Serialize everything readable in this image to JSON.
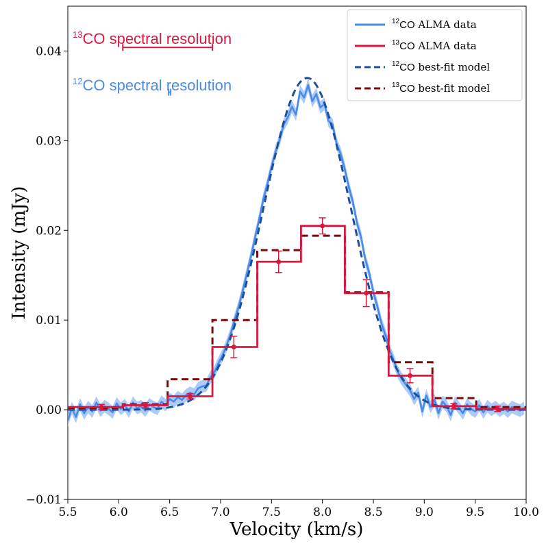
{
  "chart_data": {
    "type": "line",
    "xlabel": "Velocity (km/s)",
    "ylabel": "Intensity (mJy)",
    "xlim": [
      5.5,
      10.0
    ],
    "ylim": [
      -0.01,
      0.045
    ],
    "xticks": [
      "5.5",
      "6.0",
      "6.5",
      "7.0",
      "7.5",
      "8.0",
      "8.5",
      "9.0",
      "9.5",
      "10.0"
    ],
    "xtick_values": [
      5.5,
      6.0,
      6.5,
      7.0,
      7.5,
      8.0,
      8.5,
      9.0,
      9.5,
      10.0
    ],
    "yticks": [
      "−0.01",
      "0.00",
      "0.01",
      "0.02",
      "0.03",
      "0.04"
    ],
    "ytick_values": [
      -0.01,
      0.0,
      0.01,
      0.02,
      0.03,
      0.04
    ],
    "colors": {
      "co12_data": "#4a8be8",
      "co12_band": "#9ec2f5",
      "co13_data": "#d9183f",
      "co12_model": "#1a4f9c",
      "co13_model": "#7a0a0a"
    },
    "legend": {
      "location": "top-right",
      "entries": [
        {
          "sup": "12",
          "label": "CO",
          "suffix": " ALMA data",
          "series": "co12_data"
        },
        {
          "sup": "13",
          "label": "CO",
          "suffix": " ALMA data",
          "series": "co13_data"
        },
        {
          "sup": "12",
          "label": "CO",
          "suffix": " best-fit model",
          "series": "co12_model"
        },
        {
          "sup": "13",
          "label": "CO",
          "suffix": " best-fit model",
          "series": "co13_model"
        }
      ]
    },
    "annotations": {
      "co13_resolution": {
        "sup": "13",
        "label": "CO spectral resolution",
        "xmin": 6.04,
        "xmax": 6.92,
        "y": 0.0404
      },
      "co12_resolution": {
        "sup": "12",
        "label": "CO spectral resolution",
        "xmin": 6.49,
        "xmax": 6.51,
        "y": 0.0354
      }
    },
    "co12_model": {
      "amplitude": 0.037,
      "center": 7.85,
      "sigma": 0.43
    },
    "co13_data": {
      "edges": [
        5.5,
        6.04,
        6.48,
        6.92,
        7.36,
        7.79,
        8.22,
        8.65,
        9.08,
        9.51,
        10.0
      ],
      "values": [
        0.0003,
        0.0005,
        0.0015,
        0.007,
        0.0165,
        0.0205,
        0.013,
        0.0038,
        0.0004,
        0.0001
      ],
      "centers": [
        5.83,
        6.26,
        6.7,
        7.13,
        7.57,
        8.0,
        8.43,
        8.86,
        9.29,
        9.72
      ],
      "errors": [
        0.0003,
        0.0003,
        0.0003,
        0.0012,
        0.0012,
        0.0009,
        0.0015,
        0.0008,
        0.0003,
        0.0003
      ]
    },
    "co13_model": {
      "edges": [
        5.5,
        6.04,
        6.48,
        6.92,
        7.36,
        7.79,
        8.22,
        8.65,
        9.08,
        9.51,
        10.0
      ],
      "values": [
        0.0002,
        0.0006,
        0.0034,
        0.01,
        0.0178,
        0.0194,
        0.0131,
        0.0053,
        0.0013,
        0.0003
      ]
    },
    "co12_data": {
      "x": [
        5.5,
        5.54,
        5.58,
        5.62,
        5.66,
        5.7,
        5.74,
        5.78,
        5.82,
        5.86,
        5.9,
        5.94,
        5.98,
        6.02,
        6.06,
        6.1,
        6.14,
        6.18,
        6.22,
        6.26,
        6.3,
        6.34,
        6.38,
        6.42,
        6.46,
        6.5,
        6.54,
        6.58,
        6.62,
        6.66,
        6.7,
        6.74,
        6.78,
        6.82,
        6.86,
        6.9,
        6.94,
        6.98,
        7.02,
        7.06,
        7.1,
        7.14,
        7.18,
        7.22,
        7.26,
        7.3,
        7.34,
        7.38,
        7.42,
        7.46,
        7.5,
        7.54,
        7.58,
        7.62,
        7.66,
        7.7,
        7.74,
        7.78,
        7.82,
        7.86,
        7.9,
        7.94,
        7.98,
        8.02,
        8.06,
        8.1,
        8.14,
        8.18,
        8.22,
        8.26,
        8.3,
        8.34,
        8.38,
        8.42,
        8.46,
        8.5,
        8.54,
        8.58,
        8.62,
        8.66,
        8.7,
        8.74,
        8.78,
        8.82,
        8.86,
        8.9,
        8.94,
        8.98,
        9.02,
        9.06,
        9.1,
        9.14,
        9.18,
        9.22,
        9.26,
        9.3,
        9.34,
        9.38,
        9.42,
        9.46,
        9.5,
        9.54,
        9.58,
        9.62,
        9.66,
        9.7,
        9.74,
        9.78,
        9.82,
        9.86,
        9.9,
        9.94,
        9.98
      ],
      "y": [
        -0.0012,
        0.0002,
        -0.0008,
        0.0006,
        -0.0004,
        0.0003,
        -0.0002,
        0.0008,
        -0.0001,
        0.0004,
        0.0001,
        -0.0003,
        0.0007,
        0.0001,
        0.0005,
        -0.0002,
        0.0008,
        0.0002,
        0.0004,
        -0.0001,
        0.0006,
        0.0003,
        0.0001,
        0.0009,
        0.0005,
        0.0012,
        0.0009,
        0.0014,
        0.0011,
        0.0016,
        0.0019,
        0.0017,
        0.0024,
        0.0026,
        0.0027,
        0.0036,
        0.0042,
        0.0052,
        0.0061,
        0.0072,
        0.0085,
        0.0101,
        0.0116,
        0.0134,
        0.0153,
        0.0172,
        0.0193,
        0.0213,
        0.0235,
        0.0252,
        0.0271,
        0.0288,
        0.0301,
        0.0318,
        0.0326,
        0.0338,
        0.0329,
        0.0355,
        0.0348,
        0.0362,
        0.0344,
        0.0352,
        0.0337,
        0.0341,
        0.0322,
        0.0318,
        0.0296,
        0.0285,
        0.0268,
        0.0248,
        0.0231,
        0.0208,
        0.0192,
        0.0168,
        0.0152,
        0.0131,
        0.0115,
        0.0096,
        0.0083,
        0.0066,
        0.0055,
        0.0042,
        0.0034,
        0.0028,
        0.0022,
        0.0012,
        0.0019,
        -0.0002,
        0.0016,
        0.0003,
        0.0011,
        -0.0004,
        0.0009,
        0.0004,
        -0.0006,
        0.0008,
        0.0002,
        -0.0004,
        0.0006,
        0.0001,
        -0.0002,
        0.0005,
        -0.0003,
        0.0004,
        0.0,
        0.0003,
        -0.0001,
        0.0002,
        -0.0002,
        0.0003,
        0.0001,
        -0.0001,
        0.0002
      ],
      "band_halfwidth": 0.0007
    }
  }
}
